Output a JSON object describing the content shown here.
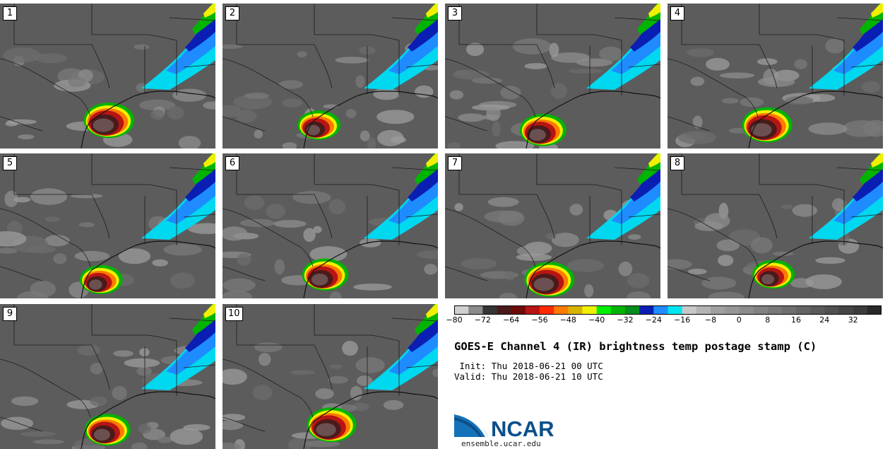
{
  "product": {
    "title": "GOES-E Channel 4 (IR) brightness temp postage stamp (C)",
    "init_label": " Init: Thu 2018-06-21 00 UTC",
    "valid_label": "Valid: Thu 2018-06-21 10 UTC"
  },
  "panels": [
    {
      "label": "1"
    },
    {
      "label": "2"
    },
    {
      "label": "3"
    },
    {
      "label": "4"
    },
    {
      "label": "5"
    },
    {
      "label": "6"
    },
    {
      "label": "7"
    },
    {
      "label": "8"
    },
    {
      "label": "9"
    },
    {
      "label": "10"
    }
  ],
  "colorbar": {
    "colors": [
      "#d0d0d0",
      "#8c8c8c",
      "#353535",
      "#4a1a1a",
      "#6e0a0a",
      "#b81414",
      "#ff2a00",
      "#ff7a00",
      "#d6b400",
      "#f0f000",
      "#00ee00",
      "#00b400",
      "#008c1e",
      "#0a1eb4",
      "#1e8cff",
      "#00e6f0",
      "#c8c8c8",
      "#b4b4b4",
      "#a0a0a0",
      "#969696",
      "#8c8c8c",
      "#828282",
      "#787878",
      "#6e6e6e",
      "#646464",
      "#5a5a5a",
      "#505050",
      "#464646",
      "#3c3c3c",
      "#282828"
    ],
    "ticks": [
      "−80",
      "−72",
      "−64",
      "−56",
      "−48",
      "−40",
      "−32",
      "−24",
      "−16",
      "−8",
      "0",
      "8",
      "16",
      "24",
      "32"
    ]
  },
  "branding": {
    "logo_text": "NCAR",
    "url": "ensemble.ucar.edu"
  }
}
